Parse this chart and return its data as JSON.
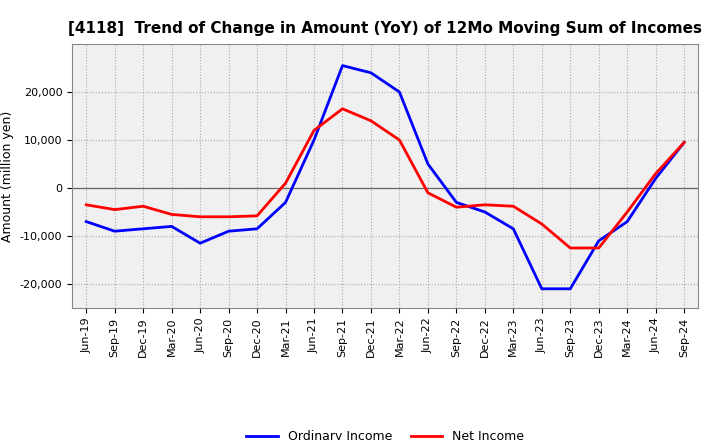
{
  "title": "[4118]  Trend of Change in Amount (YoY) of 12Mo Moving Sum of Incomes",
  "ylabel": "Amount (million yen)",
  "x_labels": [
    "Jun-19",
    "Sep-19",
    "Dec-19",
    "Mar-20",
    "Jun-20",
    "Sep-20",
    "Dec-20",
    "Mar-21",
    "Jun-21",
    "Sep-21",
    "Dec-21",
    "Mar-22",
    "Jun-22",
    "Sep-22",
    "Dec-22",
    "Mar-23",
    "Jun-23",
    "Sep-23",
    "Dec-23",
    "Mar-24",
    "Jun-24",
    "Sep-24"
  ],
  "ordinary_income": [
    -7000,
    -9000,
    -8500,
    -8000,
    -11500,
    -9000,
    -8500,
    -3000,
    10000,
    25500,
    24000,
    20000,
    5000,
    -3000,
    -5000,
    -8500,
    -21000,
    -21000,
    -11000,
    -7000,
    2000,
    9500
  ],
  "net_income": [
    -3500,
    -4500,
    -3800,
    -5500,
    -6000,
    -6000,
    -5800,
    1000,
    12000,
    16500,
    14000,
    10000,
    -1000,
    -4000,
    -3500,
    -3800,
    -7500,
    -12500,
    -12500,
    -5000,
    3000,
    9500
  ],
  "ordinary_income_color": "#0000FF",
  "net_income_color": "#FF0000",
  "ylim": [
    -25000,
    30000
  ],
  "yticks": [
    -20000,
    -10000,
    0,
    10000,
    20000
  ],
  "plot_bg_color": "#F0F0F0",
  "fig_bg_color": "#FFFFFF",
  "grid_color": "#AAAAAA",
  "line_width": 2.0,
  "title_fontsize": 11,
  "ylabel_fontsize": 9,
  "tick_fontsize": 8,
  "legend_fontsize": 9
}
